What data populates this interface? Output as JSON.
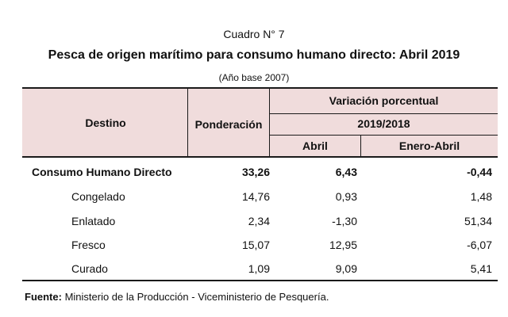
{
  "header": {
    "cuadro": "Cuadro N° 7",
    "title": "Pesca de origen marítimo para consumo humano directo: Abril 2019",
    "base": "(Año base 2007)"
  },
  "table": {
    "col_destino": "Destino",
    "col_ponderacion": "Ponderación",
    "col_variacion": "Variación porcentual",
    "col_periodo": "2019/2018",
    "col_abril": "Abril",
    "col_enero_abril": "Enero-Abril",
    "rows": [
      {
        "destino": "Consumo Humano Directo",
        "ponderacion": "33,26",
        "abril": "6,43",
        "enero_abril": "-0,44"
      },
      {
        "destino": "Congelado",
        "ponderacion": "14,76",
        "abril": "0,93",
        "enero_abril": "1,48"
      },
      {
        "destino": "Enlatado",
        "ponderacion": "2,34",
        "abril": "-1,30",
        "enero_abril": "51,34"
      },
      {
        "destino": "Fresco",
        "ponderacion": "15,07",
        "abril": "12,95",
        "enero_abril": "-6,07"
      },
      {
        "destino": "Curado",
        "ponderacion": "1,09",
        "abril": "9,09",
        "enero_abril": "5,41"
      }
    ]
  },
  "footer": {
    "fuente_label": "Fuente:",
    "fuente_text": " Ministerio de la Producción - Viceministerio de Pesquería."
  }
}
